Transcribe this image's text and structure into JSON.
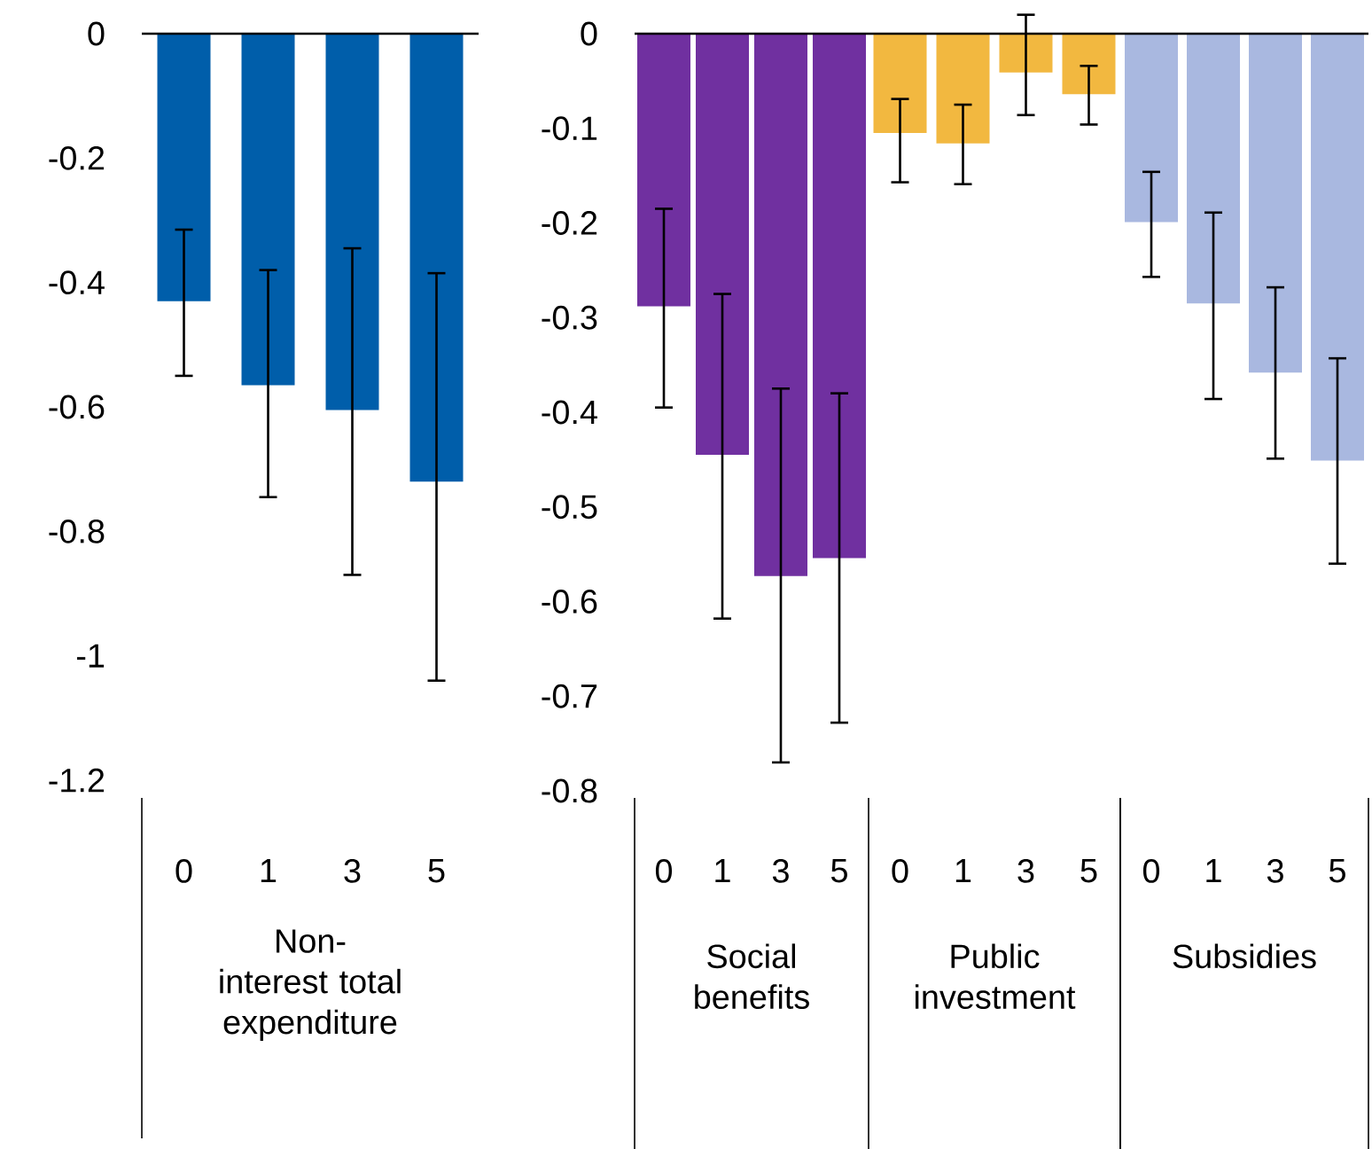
{
  "chart_data": [
    {
      "type": "bar",
      "xlabel": "Non-interest total expenditure",
      "categories": [
        "0",
        "1",
        "3",
        "5"
      ],
      "values": [
        -0.43,
        -0.565,
        -0.605,
        -0.72
      ],
      "color": "#005eaa",
      "errors": [
        [
          -0.55,
          -0.315
        ],
        [
          -0.745,
          -0.38
        ],
        [
          -0.87,
          -0.345
        ],
        [
          -1.04,
          -0.385
        ]
      ],
      "ylim": [
        -1.2,
        0
      ],
      "yticks": [
        -1.2,
        -1,
        -0.8,
        -0.6,
        -0.4,
        -0.2,
        0
      ]
    },
    {
      "type": "bar",
      "xlabel": "Social benefits",
      "categories": [
        "0",
        "1",
        "3",
        "5"
      ],
      "values": [
        -0.288,
        -0.445,
        -0.573,
        -0.554
      ],
      "color": "#7030a0",
      "errors": [
        [
          -0.395,
          -0.185
        ],
        [
          -0.618,
          -0.275
        ],
        [
          -0.77,
          -0.375
        ],
        [
          -0.728,
          -0.38
        ]
      ],
      "ylim": [
        -0.8,
        0
      ],
      "yticks": [
        -0.8,
        -0.7,
        -0.6,
        -0.5,
        -0.4,
        -0.3,
        -0.2,
        -0.1,
        0
      ]
    },
    {
      "type": "bar",
      "xlabel": "Public investment",
      "categories": [
        "0",
        "1",
        "3",
        "5"
      ],
      "values": [
        -0.105,
        -0.116,
        -0.041,
        -0.064
      ],
      "color": "#f2b840",
      "errors": [
        [
          -0.157,
          -0.069
        ],
        [
          -0.159,
          -0.075
        ],
        [
          -0.086,
          0.02
        ],
        [
          -0.096,
          -0.034
        ]
      ],
      "ylim": [
        -0.8,
        0
      ],
      "tick_labels": "x"
    },
    {
      "type": "bar",
      "xlabel": "Subsidies",
      "categories": [
        "0",
        "1",
        "3",
        "5"
      ],
      "values": [
        -0.199,
        -0.285,
        -0.358,
        -0.451
      ],
      "color": "#a9b8e0",
      "errors": [
        [
          -0.257,
          -0.146
        ],
        [
          -0.386,
          -0.189
        ],
        [
          -0.449,
          -0.268
        ],
        [
          -0.56,
          -0.343
        ]
      ],
      "ylim": [
        -0.8,
        0
      ],
      "tick_labels": "x"
    }
  ]
}
